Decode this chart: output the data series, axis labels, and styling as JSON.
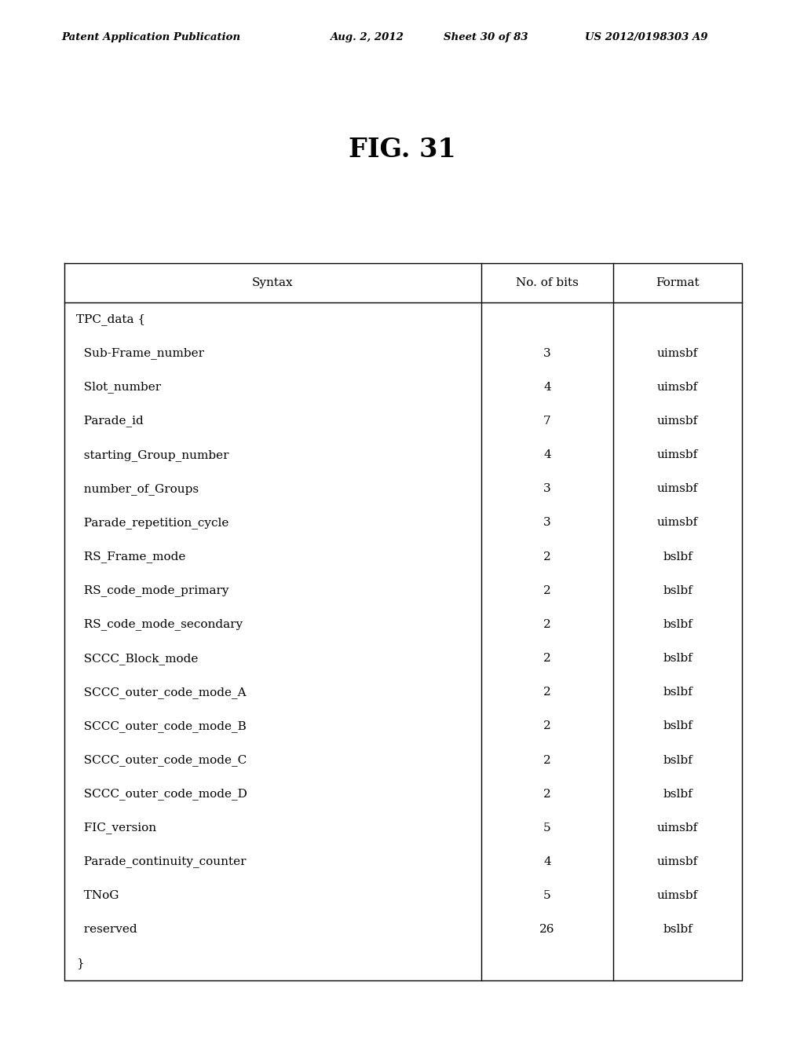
{
  "header_text": "Patent Application Publication",
  "header_date": "Aug. 2, 2012",
  "header_sheet": "Sheet 30 of 83",
  "header_patent": "US 2012/0198303 A9",
  "figure_title": "FIG. 31",
  "col_headers": [
    "Syntax",
    "No. of bits",
    "Format"
  ],
  "rows": [
    [
      "TPC_data {",
      "",
      ""
    ],
    [
      "  Sub-Frame_number",
      "3",
      "uimsbf"
    ],
    [
      "  Slot_number",
      "4",
      "uimsbf"
    ],
    [
      "  Parade_id",
      "7",
      "uimsbf"
    ],
    [
      "  starting_Group_number",
      "4",
      "uimsbf"
    ],
    [
      "  number_of_Groups",
      "3",
      "uimsbf"
    ],
    [
      "  Parade_repetition_cycle",
      "3",
      "uimsbf"
    ],
    [
      "  RS_Frame_mode",
      "2",
      "bslbf"
    ],
    [
      "  RS_code_mode_primary",
      "2",
      "bslbf"
    ],
    [
      "  RS_code_mode_secondary",
      "2",
      "bslbf"
    ],
    [
      "  SCCC_Block_mode",
      "2",
      "bslbf"
    ],
    [
      "  SCCC_outer_code_mode_A",
      "2",
      "bslbf"
    ],
    [
      "  SCCC_outer_code_mode_B",
      "2",
      "bslbf"
    ],
    [
      "  SCCC_outer_code_mode_C",
      "2",
      "bslbf"
    ],
    [
      "  SCCC_outer_code_mode_D",
      "2",
      "bslbf"
    ],
    [
      "  FIC_version",
      "5",
      "uimsbf"
    ],
    [
      "  Parade_continuity_counter",
      "4",
      "uimsbf"
    ],
    [
      "  TNoG",
      "5",
      "uimsbf"
    ],
    [
      "  reserved",
      "26",
      "bslbf"
    ],
    [
      "}",
      "",
      ""
    ]
  ],
  "background_color": "#ffffff",
  "line_color": "#000000",
  "text_color": "#000000",
  "font_size": 11.0,
  "header_font_size": 9.5,
  "title_font_size": 24
}
